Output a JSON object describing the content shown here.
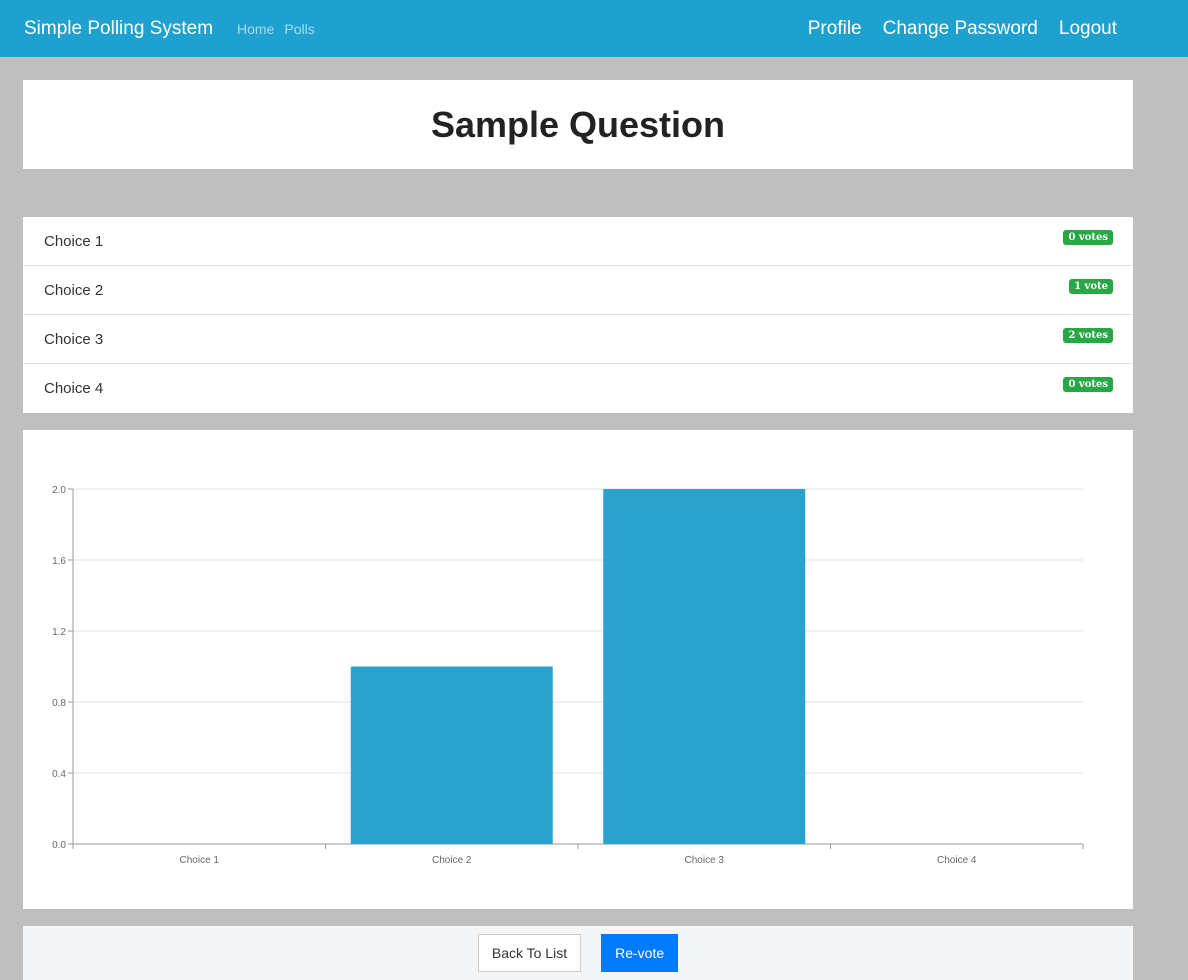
{
  "nav": {
    "brand": "Simple Polling System",
    "links": [
      "Home",
      "Polls"
    ],
    "right": [
      "Profile",
      "Change Password",
      "Logout"
    ]
  },
  "question": {
    "title": "Sample Question"
  },
  "choices": [
    {
      "label": "Choice 1",
      "badge": "0 votes"
    },
    {
      "label": "Choice 2",
      "badge": "1 vote"
    },
    {
      "label": "Choice 3",
      "badge": "2 votes"
    },
    {
      "label": "Choice 4",
      "badge": "0 votes"
    }
  ],
  "chart_data": {
    "type": "bar",
    "categories": [
      "Choice 1",
      "Choice 2",
      "Choice 3",
      "Choice 4"
    ],
    "values": [
      0,
      1,
      2,
      0
    ],
    "ylim": [
      0,
      2
    ],
    "yticks": [
      "0.0",
      "0.4",
      "0.8",
      "1.2",
      "1.6",
      "2.0"
    ],
    "grid": true,
    "bar_color": "#29a2cd"
  },
  "buttons": {
    "back": "Back To List",
    "revote": "Re-vote"
  },
  "colors": {
    "navbar": "#1ea1cf",
    "badge": "#28a745",
    "primary": "#007bff"
  }
}
